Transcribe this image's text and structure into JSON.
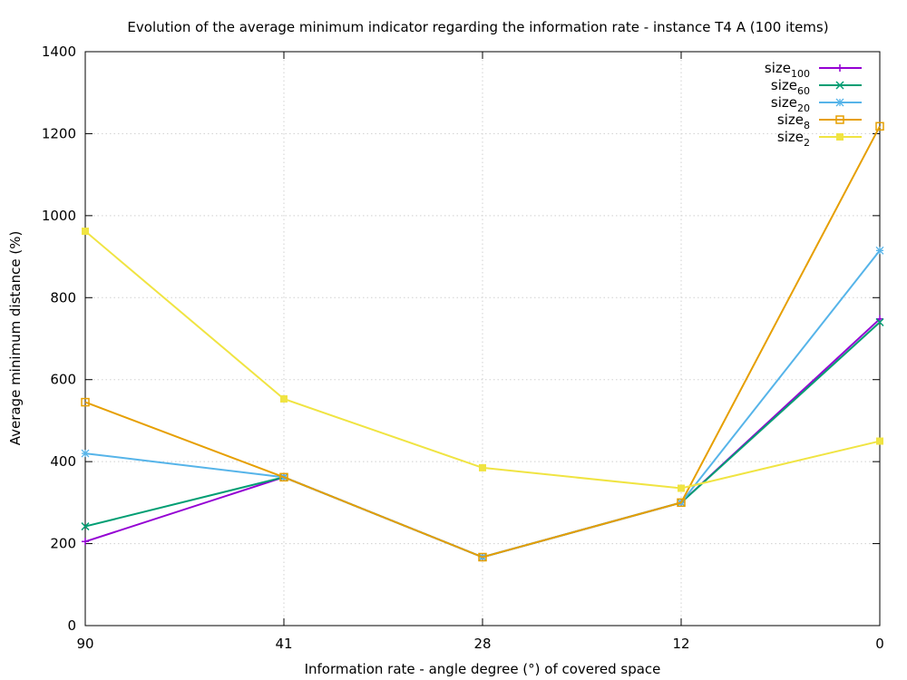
{
  "chart_data": {
    "type": "line",
    "title": "Evolution of the average minimum indicator regarding the information rate - instance T4 A (100 items)",
    "xlabel": "Information rate - angle degree (°)  of covered space",
    "ylabel": "Average minimum distance (%)",
    "categories": [
      "90",
      "41",
      "28",
      "12",
      "0"
    ],
    "ylim": [
      0,
      1400
    ],
    "yticks": [
      0,
      200,
      400,
      600,
      800,
      1000,
      1200,
      1400
    ],
    "grid": true,
    "legend_position": "top-right",
    "series": [
      {
        "name": "size",
        "sub": "100",
        "color": "#9400d3",
        "marker": "plus",
        "values": [
          205,
          362,
          167,
          300,
          748
        ]
      },
      {
        "name": "size",
        "sub": "60",
        "color": "#009e73",
        "marker": "cross",
        "values": [
          242,
          362,
          167,
          300,
          740
        ]
      },
      {
        "name": "size",
        "sub": "20",
        "color": "#56b4e9",
        "marker": "star",
        "values": [
          420,
          362,
          167,
          300,
          915
        ]
      },
      {
        "name": "size",
        "sub": "8",
        "color": "#e69f00",
        "marker": "open-square",
        "values": [
          545,
          362,
          167,
          300,
          1218
        ]
      },
      {
        "name": "size",
        "sub": "2",
        "color": "#f0e442",
        "marker": "filled-square",
        "values": [
          962,
          553,
          385,
          335,
          450
        ]
      }
    ]
  }
}
